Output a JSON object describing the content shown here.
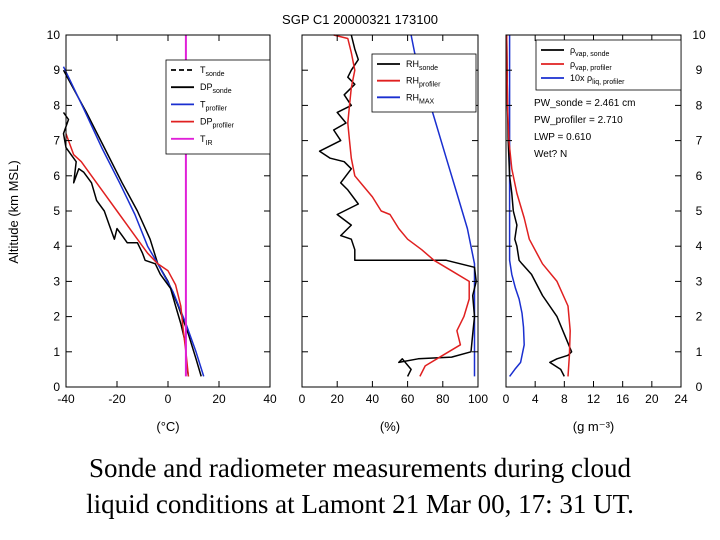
{
  "title": "SGP C1 20000321 173100",
  "caption": {
    "line1": "Sonde and radiometer measurements during cloud",
    "line2": "liquid conditions at Lamont 21 Mar 00, 17: 31 UT."
  },
  "colors": {
    "black": "#000000",
    "red": "#e02020",
    "blue": "#1a2fd0",
    "magenta": "#e020d8"
  },
  "chart_data": [
    {
      "type": "line",
      "title": "SGP C1 20000321 173100",
      "xlabel": "(°C)",
      "ylabel": "Altitude (km MSL)",
      "xlim": [
        -40,
        40
      ],
      "ylim": [
        0,
        10
      ],
      "xticks": [
        "-40",
        "-20",
        "0",
        "20",
        "40"
      ],
      "yticks": [
        "0",
        "1",
        "2",
        "3",
        "4",
        "5",
        "6",
        "7",
        "8",
        "9",
        "10"
      ],
      "legend_position": "top-right",
      "legend": [
        {
          "name": "T",
          "sub": "sonde",
          "color": "#000000",
          "dash": true
        },
        {
          "name": "DP",
          "sub": "sonde",
          "color": "#000000",
          "dash": false
        },
        {
          "name": "T",
          "sub": "profiler",
          "color": "#1a2fd0",
          "dash": false
        },
        {
          "name": "DP",
          "sub": "profiler",
          "color": "#e02020",
          "dash": false
        },
        {
          "name": "T",
          "sub": "IR",
          "color": "#e020d8",
          "dash": false
        }
      ],
      "series": [
        {
          "color": "#000000",
          "points": [
            [
              13,
              0.3
            ],
            [
              11,
              0.8
            ],
            [
              8,
              1.5
            ],
            [
              4,
              2.3
            ],
            [
              0,
              3.0
            ],
            [
              -4,
              3.5
            ],
            [
              -7,
              4.2
            ],
            [
              -12,
              5.0
            ],
            [
              -18,
              5.8
            ],
            [
              -25,
              6.8
            ],
            [
              -32,
              7.8
            ],
            [
              -38,
              8.6
            ],
            [
              -41,
              9.0
            ]
          ]
        },
        {
          "color": "#1a2fd0",
          "points": [
            [
              14,
              0.3
            ],
            [
              11,
              1.0
            ],
            [
              7,
              1.8
            ],
            [
              2,
              2.7
            ],
            [
              -4,
              3.5
            ],
            [
              -8,
              4.0
            ],
            [
              -13,
              4.9
            ],
            [
              -19,
              5.8
            ],
            [
              -26,
              6.8
            ],
            [
              -33,
              7.9
            ],
            [
              -41,
              9.1
            ]
          ]
        },
        {
          "color": "#000000",
          "points": [
            [
              8,
              0.3
            ],
            [
              7,
              0.8
            ],
            [
              7,
              1.2
            ],
            [
              5,
              1.8
            ],
            [
              3,
              2.3
            ],
            [
              1,
              2.8
            ],
            [
              -3,
              3.2
            ],
            [
              -5,
              3.5
            ],
            [
              -9,
              3.6
            ],
            [
              -10,
              3.8
            ],
            [
              -12,
              4.1
            ],
            [
              -16,
              4.1
            ],
            [
              -18,
              4.3
            ],
            [
              -20,
              4.5
            ],
            [
              -21,
              4.2
            ],
            [
              -23,
              4.6
            ],
            [
              -25,
              5.0
            ],
            [
              -28,
              5.3
            ],
            [
              -30,
              5.8
            ],
            [
              -33,
              6.1
            ],
            [
              -35,
              6.2
            ],
            [
              -37,
              5.8
            ],
            [
              -36,
              6.4
            ],
            [
              -38,
              6.6
            ],
            [
              -40,
              6.8
            ],
            [
              -41,
              7.2
            ],
            [
              -39,
              7.6
            ],
            [
              -41,
              7.8
            ]
          ]
        },
        {
          "color": "#e02020",
          "points": [
            [
              8,
              0.3
            ],
            [
              7,
              1.0
            ],
            [
              6,
              1.6
            ],
            [
              5,
              2.3
            ],
            [
              3,
              2.9
            ],
            [
              0,
              3.3
            ],
            [
              -4,
              3.5
            ],
            [
              -8,
              3.8
            ],
            [
              -12,
              4.2
            ],
            [
              -16,
              4.6
            ],
            [
              -20,
              5.0
            ],
            [
              -25,
              5.5
            ],
            [
              -30,
              6.0
            ],
            [
              -34,
              6.4
            ],
            [
              -37,
              6.6
            ],
            [
              -39,
              7.0
            ],
            [
              -40,
              7.2
            ]
          ]
        },
        {
          "color": "#e020d8",
          "points": [
            [
              7,
              0.3
            ],
            [
              7,
              10
            ]
          ]
        }
      ]
    },
    {
      "type": "line",
      "xlabel": "(%)",
      "xlim": [
        0,
        100
      ],
      "ylim": [
        0,
        10
      ],
      "xticks": [
        "0",
        "20",
        "40",
        "60",
        "80",
        "100"
      ],
      "legend_position": "top-right",
      "legend": [
        {
          "name": "RH",
          "sub": "sonde",
          "color": "#000000"
        },
        {
          "name": "RH",
          "sub": "profiler",
          "color": "#e02020"
        },
        {
          "name": "RH",
          "sub": "MAX",
          "color": "#1a2fd0"
        }
      ],
      "series": [
        {
          "color": "#1a2fd0",
          "points": [
            [
              98,
              0.3
            ],
            [
              98,
              3.5
            ],
            [
              94,
              4.5
            ],
            [
              88,
              5.5
            ],
            [
              82,
              6.5
            ],
            [
              76,
              7.5
            ],
            [
              70,
              8.5
            ],
            [
              64,
              9.5
            ],
            [
              62,
              10
            ]
          ]
        },
        {
          "color": "#000000",
          "points": [
            [
              60,
              0.3
            ],
            [
              62,
              0.5
            ],
            [
              57,
              0.8
            ],
            [
              55,
              0.7
            ],
            [
              66,
              0.8
            ],
            [
              85,
              0.85
            ],
            [
              96,
              1.0
            ],
            [
              97,
              1.5
            ],
            [
              98,
              2.0
            ],
            [
              97,
              2.6
            ],
            [
              99,
              3.0
            ],
            [
              98,
              3.4
            ],
            [
              90,
              3.5
            ],
            [
              82,
              3.6
            ],
            [
              55,
              3.6
            ],
            [
              30,
              3.6
            ],
            [
              30,
              3.9
            ],
            [
              28,
              4.2
            ],
            [
              22,
              4.3
            ],
            [
              28,
              4.6
            ],
            [
              20,
              4.9
            ],
            [
              32,
              5.2
            ],
            [
              26,
              5.6
            ],
            [
              22,
              5.8
            ],
            [
              28,
              6.2
            ],
            [
              24,
              6.4
            ],
            [
              16,
              6.5
            ],
            [
              10,
              6.7
            ],
            [
              22,
              7.0
            ],
            [
              18,
              7.3
            ],
            [
              25,
              7.5
            ],
            [
              20,
              7.8
            ],
            [
              28,
              8.0
            ],
            [
              24,
              8.3
            ],
            [
              30,
              8.6
            ],
            [
              26,
              8.8
            ],
            [
              28,
              9.0
            ],
            [
              32,
              9.3
            ],
            [
              30,
              9.6
            ],
            [
              28,
              10
            ]
          ]
        },
        {
          "color": "#e02020",
          "points": [
            [
              67,
              0.3
            ],
            [
              70,
              0.6
            ],
            [
              80,
              0.9
            ],
            [
              90,
              1.2
            ],
            [
              88,
              1.6
            ],
            [
              92,
              2.0
            ],
            [
              95,
              2.5
            ],
            [
              95,
              3.0
            ],
            [
              85,
              3.3
            ],
            [
              75,
              3.6
            ],
            [
              68,
              3.9
            ],
            [
              60,
              4.2
            ],
            [
              55,
              4.5
            ],
            [
              50,
              4.9
            ],
            [
              45,
              5.0
            ],
            [
              40,
              5.4
            ],
            [
              35,
              5.7
            ],
            [
              30,
              6.0
            ],
            [
              28,
              6.5
            ],
            [
              27,
              7.0
            ],
            [
              26,
              7.5
            ],
            [
              27,
              8.0
            ],
            [
              28,
              8.5
            ],
            [
              30,
              9.0
            ],
            [
              28,
              9.5
            ],
            [
              26,
              9.9
            ],
            [
              18,
              10
            ]
          ]
        }
      ]
    },
    {
      "type": "line",
      "xlabel": "(g m⁻³)",
      "xlim": [
        0,
        24
      ],
      "ylim": [
        0,
        10
      ],
      "xticks": [
        "0",
        "4",
        "8",
        "12",
        "16",
        "20",
        "24"
      ],
      "yticks_right": [
        "0",
        "1",
        "2",
        "3",
        "4",
        "5",
        "6",
        "7",
        "8",
        "9",
        "10"
      ],
      "legend_position": "top-right",
      "legend": [
        {
          "name": "ρ",
          "sub": "vap, sonde",
          "color": "#000000"
        },
        {
          "name": "ρ",
          "sub": "vap, profiler",
          "color": "#e02020"
        },
        {
          "name": "10x ρ",
          "sub": "liq, profiler",
          "color": "#1a2fd0"
        }
      ],
      "annotations": [
        "PW_sonde = 2.461 cm",
        "PW_profiler = 2.710",
        "LWP = 0.610",
        "Wet? N"
      ],
      "series": [
        {
          "color": "#1a2fd0",
          "points": [
            [
              0.5,
              0.3
            ],
            [
              1.2,
              0.5
            ],
            [
              2,
              0.7
            ],
            [
              2.5,
              1.2
            ],
            [
              2.4,
              1.7
            ],
            [
              2.2,
              2.1
            ],
            [
              1.8,
              2.5
            ],
            [
              1.3,
              2.8
            ],
            [
              0.8,
              3.2
            ],
            [
              0.5,
              3.6
            ],
            [
              0.5,
              10
            ]
          ]
        },
        {
          "color": "#000000",
          "points": [
            [
              8,
              0.3
            ],
            [
              7.5,
              0.5
            ],
            [
              6,
              0.7
            ],
            [
              7,
              0.8
            ],
            [
              8.5,
              0.9
            ],
            [
              9,
              1.0
            ],
            [
              8,
              1.5
            ],
            [
              7,
              2.0
            ],
            [
              5,
              2.6
            ],
            [
              3.5,
              3.2
            ],
            [
              2.2,
              3.5
            ],
            [
              1.8,
              3.6
            ],
            [
              1.5,
              4.0
            ],
            [
              1.2,
              4.2
            ],
            [
              1.5,
              4.6
            ],
            [
              1.0,
              5.0
            ],
            [
              0.8,
              5.5
            ],
            [
              0.5,
              6.0
            ],
            [
              0.3,
              7.0
            ],
            [
              0.2,
              8.0
            ],
            [
              0.1,
              10
            ]
          ]
        },
        {
          "color": "#e02020",
          "points": [
            [
              8.5,
              0.3
            ],
            [
              8.7,
              0.9
            ],
            [
              8.8,
              1.6
            ],
            [
              8.5,
              2.3
            ],
            [
              7,
              3.0
            ],
            [
              5,
              3.5
            ],
            [
              3.2,
              4.2
            ],
            [
              2.5,
              4.8
            ],
            [
              1.5,
              5.5
            ],
            [
              0.8,
              6.2
            ],
            [
              0.4,
              7.0
            ],
            [
              0.2,
              8.0
            ],
            [
              0.1,
              10
            ]
          ]
        }
      ]
    }
  ]
}
